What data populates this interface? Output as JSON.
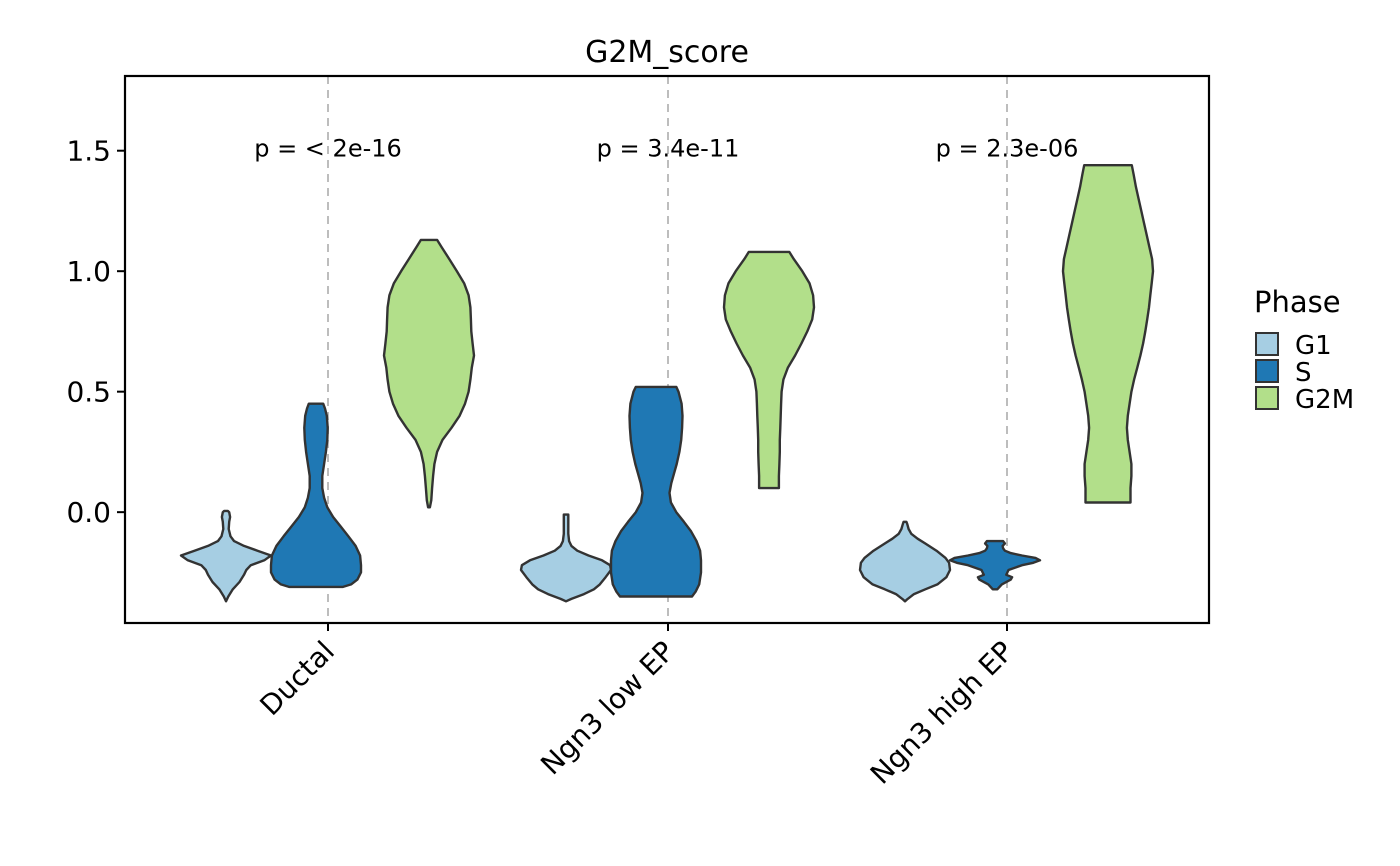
{
  "chart_data": {
    "type": "violin",
    "title": "G2M_score",
    "xlabel": "",
    "ylabel": "",
    "ylim": [
      -0.46,
      1.81
    ],
    "yticks": [
      {
        "value": 0.0,
        "label": "0.0"
      },
      {
        "value": 0.5,
        "label": "0.5"
      },
      {
        "value": 1.0,
        "label": "1.0"
      },
      {
        "value": 1.5,
        "label": "1.5"
      }
    ],
    "grid": "vertical dashed lines at category centers",
    "categories": [
      "Ductal",
      "Ngn3 low EP",
      "Ngn3 high EP"
    ],
    "pvalues": [
      "p = < 2e-16",
      "p = 3.4e-11",
      "p = 2.3e-06"
    ],
    "pvalue_y": 1.5,
    "legend": {
      "title": "Phase",
      "placement": "right",
      "items": [
        {
          "name": "G1",
          "color": "#a6cee3"
        },
        {
          "name": "S",
          "color": "#1f78b4"
        },
        {
          "name": "G2M",
          "color": "#b2df8a"
        }
      ]
    },
    "series": [
      {
        "name": "G1",
        "color": "#a6cee3",
        "violins": [
          {
            "category": "Ductal",
            "profile": [
              [
                -0.37,
                0.0
              ],
              [
                -0.35,
                0.05
              ],
              [
                -0.32,
                0.15
              ],
              [
                -0.29,
                0.3
              ],
              [
                -0.26,
                0.4
              ],
              [
                -0.24,
                0.45
              ],
              [
                -0.22,
                0.55
              ],
              [
                -0.2,
                0.85
              ],
              [
                -0.18,
                1.0
              ],
              [
                -0.16,
                0.7
              ],
              [
                -0.14,
                0.4
              ],
              [
                -0.12,
                0.18
              ],
              [
                -0.1,
                0.1
              ],
              [
                -0.07,
                0.06
              ],
              [
                -0.04,
                0.07
              ],
              [
                -0.02,
                0.09
              ],
              [
                0.0,
                0.07
              ],
              [
                0.005,
                0.04
              ]
            ]
          },
          {
            "category": "Ngn3 low EP",
            "profile": [
              [
                -0.37,
                0.0
              ],
              [
                -0.36,
                0.12
              ],
              [
                -0.34,
                0.4
              ],
              [
                -0.32,
                0.62
              ],
              [
                -0.3,
                0.75
              ],
              [
                -0.27,
                0.88
              ],
              [
                -0.24,
                1.0
              ],
              [
                -0.22,
                0.98
              ],
              [
                -0.2,
                0.8
              ],
              [
                -0.18,
                0.5
              ],
              [
                -0.16,
                0.25
              ],
              [
                -0.14,
                0.12
              ],
              [
                -0.12,
                0.07
              ],
              [
                -0.09,
                0.05
              ],
              [
                -0.05,
                0.05
              ],
              [
                -0.02,
                0.05
              ],
              [
                -0.01,
                0.05
              ]
            ]
          },
          {
            "category": "Ngn3 high EP",
            "profile": [
              [
                -0.37,
                0.0
              ],
              [
                -0.36,
                0.06
              ],
              [
                -0.34,
                0.2
              ],
              [
                -0.32,
                0.45
              ],
              [
                -0.3,
                0.72
              ],
              [
                -0.27,
                0.92
              ],
              [
                -0.24,
                1.0
              ],
              [
                -0.21,
                0.98
              ],
              [
                -0.19,
                0.9
              ],
              [
                -0.16,
                0.7
              ],
              [
                -0.13,
                0.45
              ],
              [
                -0.11,
                0.28
              ],
              [
                -0.09,
                0.14
              ],
              [
                -0.07,
                0.08
              ],
              [
                -0.05,
                0.05
              ],
              [
                -0.04,
                0.03
              ]
            ]
          }
        ]
      },
      {
        "name": "S",
        "color": "#1f78b4",
        "violins": [
          {
            "category": "Ductal",
            "profile": [
              [
                -0.31,
                0.6
              ],
              [
                -0.3,
                0.78
              ],
              [
                -0.28,
                0.92
              ],
              [
                -0.25,
                1.0
              ],
              [
                -0.22,
                1.0
              ],
              [
                -0.18,
                0.98
              ],
              [
                -0.14,
                0.88
              ],
              [
                -0.1,
                0.72
              ],
              [
                -0.06,
                0.55
              ],
              [
                -0.02,
                0.38
              ],
              [
                0.02,
                0.25
              ],
              [
                0.06,
                0.18
              ],
              [
                0.1,
                0.14
              ],
              [
                0.15,
                0.14
              ],
              [
                0.2,
                0.18
              ],
              [
                0.25,
                0.22
              ],
              [
                0.3,
                0.25
              ],
              [
                0.35,
                0.26
              ],
              [
                0.4,
                0.24
              ],
              [
                0.43,
                0.2
              ],
              [
                0.45,
                0.16
              ]
            ]
          },
          {
            "category": "Ngn3 low EP",
            "profile": [
              [
                -0.35,
                0.8
              ],
              [
                -0.33,
                0.88
              ],
              [
                -0.3,
                0.96
              ],
              [
                -0.25,
                1.0
              ],
              [
                -0.2,
                1.0
              ],
              [
                -0.16,
                0.98
              ],
              [
                -0.12,
                0.9
              ],
              [
                -0.08,
                0.78
              ],
              [
                -0.04,
                0.62
              ],
              [
                0.0,
                0.45
              ],
              [
                0.04,
                0.33
              ],
              [
                0.08,
                0.3
              ],
              [
                0.12,
                0.34
              ],
              [
                0.16,
                0.4
              ],
              [
                0.2,
                0.46
              ],
              [
                0.25,
                0.52
              ],
              [
                0.3,
                0.56
              ],
              [
                0.35,
                0.58
              ],
              [
                0.4,
                0.59
              ],
              [
                0.45,
                0.57
              ],
              [
                0.5,
                0.5
              ],
              [
                0.52,
                0.45
              ]
            ]
          },
          {
            "category": "Ngn3 high EP",
            "profile": [
              [
                -0.32,
                0.05
              ],
              [
                -0.3,
                0.15
              ],
              [
                -0.28,
                0.35
              ],
              [
                -0.27,
                0.38
              ],
              [
                -0.26,
                0.25
              ],
              [
                -0.24,
                0.3
              ],
              [
                -0.22,
                0.6
              ],
              [
                -0.21,
                0.85
              ],
              [
                -0.2,
                1.0
              ],
              [
                -0.19,
                0.9
              ],
              [
                -0.18,
                0.6
              ],
              [
                -0.17,
                0.35
              ],
              [
                -0.16,
                0.22
              ],
              [
                -0.15,
                0.18
              ],
              [
                -0.14,
                0.17
              ],
              [
                -0.13,
                0.22
              ],
              [
                -0.12,
                0.18
              ]
            ]
          }
        ]
      },
      {
        "name": "G2M",
        "color": "#b2df8a",
        "violins": [
          {
            "category": "Ductal",
            "profile": [
              [
                0.02,
                0.02
              ],
              [
                0.05,
                0.05
              ],
              [
                0.1,
                0.07
              ],
              [
                0.15,
                0.09
              ],
              [
                0.2,
                0.12
              ],
              [
                0.25,
                0.18
              ],
              [
                0.3,
                0.3
              ],
              [
                0.35,
                0.5
              ],
              [
                0.4,
                0.68
              ],
              [
                0.45,
                0.8
              ],
              [
                0.5,
                0.88
              ],
              [
                0.55,
                0.92
              ],
              [
                0.6,
                0.95
              ],
              [
                0.65,
                1.0
              ],
              [
                0.7,
                0.97
              ],
              [
                0.75,
                0.94
              ],
              [
                0.8,
                0.93
              ],
              [
                0.85,
                0.92
              ],
              [
                0.9,
                0.88
              ],
              [
                0.95,
                0.78
              ],
              [
                1.0,
                0.62
              ],
              [
                1.05,
                0.45
              ],
              [
                1.1,
                0.28
              ],
              [
                1.13,
                0.18
              ]
            ]
          },
          {
            "category": "Ngn3 low EP",
            "profile": [
              [
                0.1,
                0.22
              ],
              [
                0.15,
                0.22
              ],
              [
                0.2,
                0.23
              ],
              [
                0.25,
                0.24
              ],
              [
                0.3,
                0.24
              ],
              [
                0.35,
                0.25
              ],
              [
                0.4,
                0.26
              ],
              [
                0.45,
                0.27
              ],
              [
                0.5,
                0.28
              ],
              [
                0.55,
                0.32
              ],
              [
                0.6,
                0.42
              ],
              [
                0.65,
                0.58
              ],
              [
                0.7,
                0.72
              ],
              [
                0.75,
                0.85
              ],
              [
                0.8,
                0.96
              ],
              [
                0.85,
                1.0
              ],
              [
                0.9,
                0.98
              ],
              [
                0.95,
                0.9
              ],
              [
                1.0,
                0.74
              ],
              [
                1.05,
                0.55
              ],
              [
                1.08,
                0.45
              ]
            ]
          },
          {
            "category": "Ngn3 high EP",
            "profile": [
              [
                0.04,
                0.5
              ],
              [
                0.1,
                0.5
              ],
              [
                0.15,
                0.52
              ],
              [
                0.2,
                0.52
              ],
              [
                0.25,
                0.48
              ],
              [
                0.3,
                0.44
              ],
              [
                0.35,
                0.42
              ],
              [
                0.4,
                0.44
              ],
              [
                0.45,
                0.48
              ],
              [
                0.5,
                0.52
              ],
              [
                0.55,
                0.58
              ],
              [
                0.6,
                0.65
              ],
              [
                0.65,
                0.72
              ],
              [
                0.7,
                0.78
              ],
              [
                0.75,
                0.83
              ],
              [
                0.8,
                0.87
              ],
              [
                0.85,
                0.91
              ],
              [
                0.9,
                0.94
              ],
              [
                0.95,
                0.97
              ],
              [
                1.0,
                1.0
              ],
              [
                1.05,
                0.98
              ],
              [
                1.1,
                0.92
              ],
              [
                1.15,
                0.86
              ],
              [
                1.2,
                0.8
              ],
              [
                1.25,
                0.74
              ],
              [
                1.3,
                0.68
              ],
              [
                1.35,
                0.62
              ],
              [
                1.4,
                0.57
              ],
              [
                1.44,
                0.53
              ]
            ]
          }
        ]
      }
    ]
  }
}
